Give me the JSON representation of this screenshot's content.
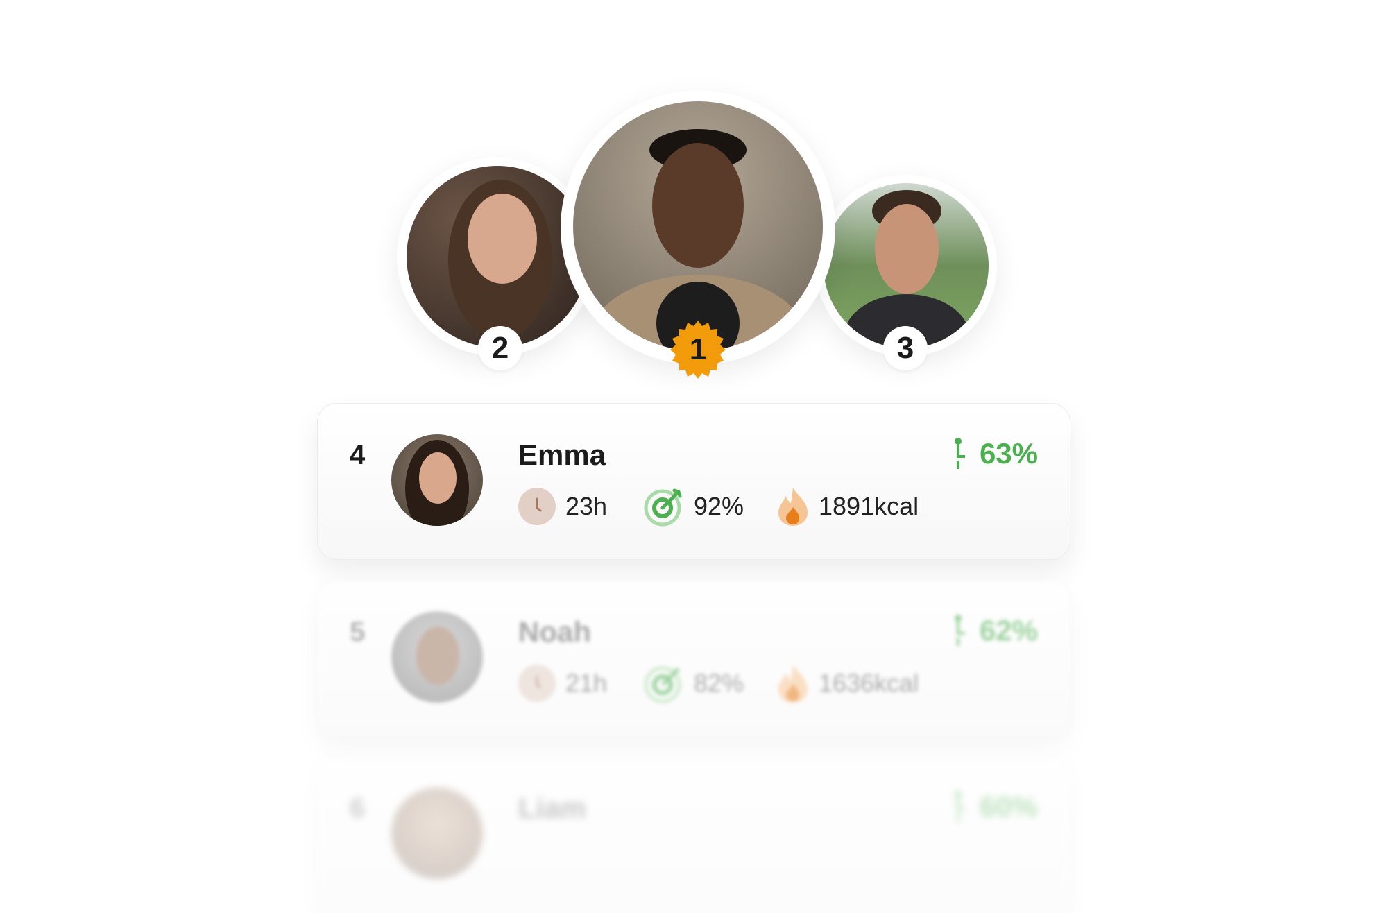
{
  "podium": [
    {
      "rank": "1",
      "badge_color": "#f39c0b"
    },
    {
      "rank": "2"
    },
    {
      "rank": "3"
    }
  ],
  "leaderboard": [
    {
      "rank": "4",
      "name": "Emma",
      "hours": "23h",
      "accuracy": "92%",
      "calories": "1891kcal",
      "progress": "63%"
    },
    {
      "rank": "5",
      "name": "Noah",
      "hours": "21h",
      "accuracy": "82%",
      "calories": "1636kcal",
      "progress": "62%"
    },
    {
      "rank": "6",
      "name": "Liam",
      "progress": "60%"
    }
  ],
  "icons": {
    "time": "clock-icon",
    "accuracy": "target-icon",
    "calories": "flame-icon",
    "progress": "progress-pin-icon"
  },
  "colors": {
    "accent_green": "#4caf50",
    "gold": "#f39c0b",
    "clock": "#d9c2b6",
    "flame": "#f0a050"
  }
}
